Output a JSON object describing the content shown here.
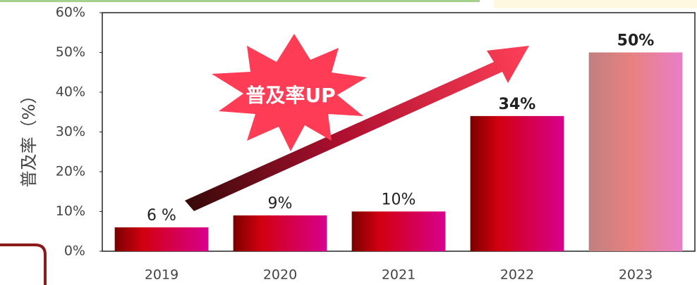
{
  "chart_data": {
    "type": "bar",
    "y_label": "普及率（%）",
    "annotation": "普及率UP",
    "categories": [
      "2019",
      "2020",
      "2021",
      "2022",
      "2023"
    ],
    "values": [
      6,
      9,
      10,
      34,
      50
    ],
    "value_labels": [
      "6 %",
      "9%",
      "10%",
      "34%",
      "50%"
    ],
    "ylim": [
      0,
      60
    ],
    "yticks": [
      {
        "value": 0,
        "label": "0%"
      },
      {
        "value": 10,
        "label": "10%"
      },
      {
        "value": 20,
        "label": "20%"
      },
      {
        "value": 30,
        "label": "30%"
      },
      {
        "value": 40,
        "label": "40%"
      },
      {
        "value": 50,
        "label": "50%"
      },
      {
        "value": 60,
        "label": "60%"
      }
    ]
  }
}
